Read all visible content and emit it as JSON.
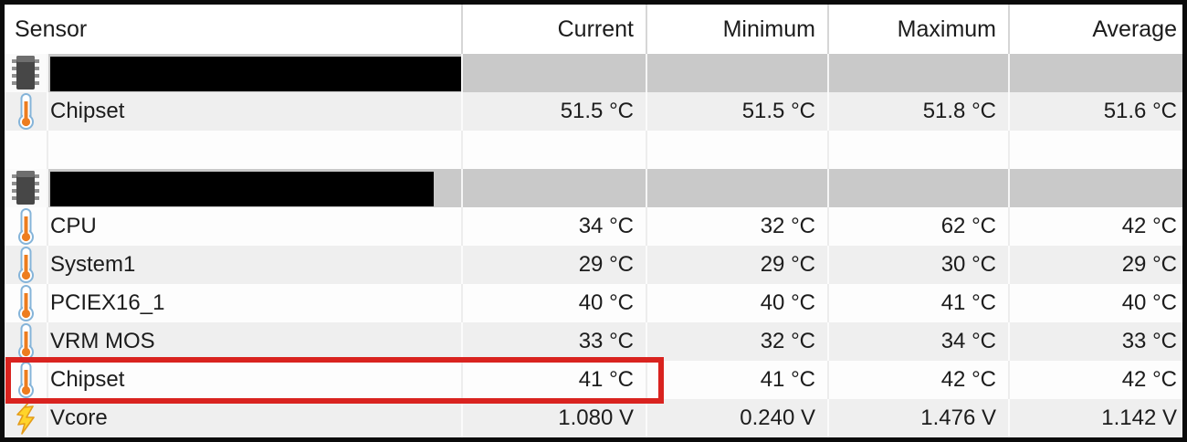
{
  "app": "sensor-status-table",
  "colors": {
    "frame": "#0b0b0b",
    "section_row_bg": "#c9c9c9",
    "row_alt_bg": "#efefef",
    "row_bg": "#fdfdfd",
    "redaction_bar": "#000000",
    "highlight_box_red": "#d9231f",
    "text": "#1c1c1c"
  },
  "header": {
    "columns": [
      "Sensor",
      "Current",
      "Minimum",
      "Maximum",
      "Average"
    ]
  },
  "rows": [
    {
      "kind": "section",
      "icon": "chip-icon",
      "label_redacted": true,
      "redaction_width": 452
    },
    {
      "kind": "sensor",
      "icon": "thermometer-icon",
      "label": "Chipset",
      "shade": "alt",
      "values": [
        "51.5 °C",
        "51.5 °C",
        "51.8 °C",
        "51.6 °C"
      ]
    },
    {
      "kind": "spacer"
    },
    {
      "kind": "section",
      "icon": "chip-icon",
      "label_redacted": true,
      "redaction_width": 420
    },
    {
      "kind": "sensor",
      "icon": "thermometer-icon",
      "label": "CPU",
      "shade": "plain",
      "values": [
        "34 °C",
        "32 °C",
        "62 °C",
        "42 °C"
      ]
    },
    {
      "kind": "sensor",
      "icon": "thermometer-icon",
      "label": "System1",
      "shade": "alt",
      "values": [
        "29 °C",
        "29 °C",
        "30 °C",
        "29 °C"
      ]
    },
    {
      "kind": "sensor",
      "icon": "thermometer-icon",
      "label": "PCIEX16_1",
      "shade": "plain",
      "values": [
        "40 °C",
        "40 °C",
        "41 °C",
        "40 °C"
      ]
    },
    {
      "kind": "sensor",
      "icon": "thermometer-icon",
      "label": "VRM MOS",
      "shade": "alt",
      "values": [
        "33 °C",
        "32 °C",
        "34 °C",
        "33 °C"
      ]
    },
    {
      "kind": "sensor",
      "icon": "thermometer-icon",
      "label": "Chipset",
      "shade": "plain",
      "highlighted": true,
      "values": [
        "41 °C",
        "41 °C",
        "42 °C",
        "42 °C"
      ]
    },
    {
      "kind": "sensor",
      "icon": "lightning-icon",
      "label": "Vcore",
      "shade": "alt",
      "values": [
        "1.080 V",
        "0.240 V",
        "1.476 V",
        "1.142 V"
      ]
    }
  ],
  "highlight": {
    "target_row_label": "Chipset",
    "spans_columns": [
      "Sensor",
      "Current"
    ]
  }
}
